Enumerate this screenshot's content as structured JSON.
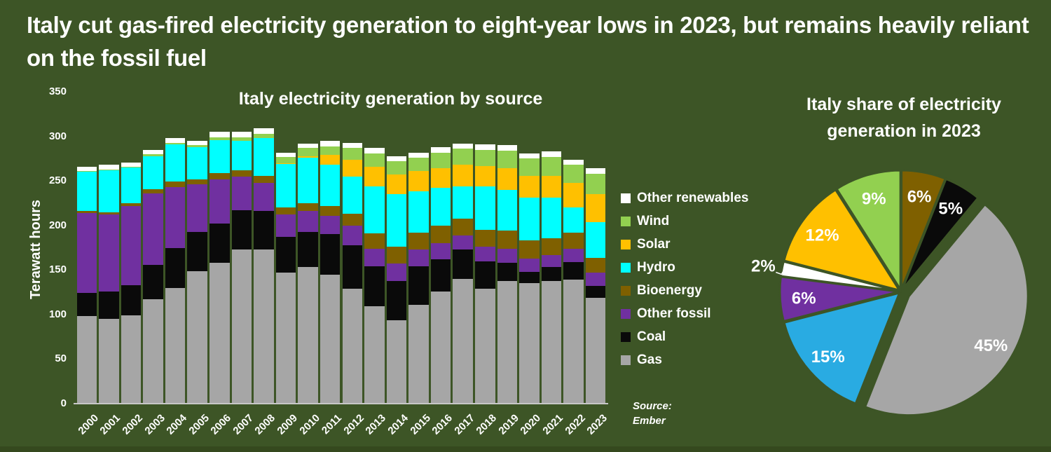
{
  "headline": "Italy cut gas-fired electricity generation to eight-year lows in 2023, but remains heavily reliant on the fossil fuel",
  "source": {
    "label": "Source:",
    "name": "Ember"
  },
  "colors": {
    "background": "#3D5526",
    "footer_strip": "#35491E",
    "text": "#FFFFFF",
    "axis_line": "#C7C7C7"
  },
  "chart_data": [
    {
      "type": "bar",
      "stacked": true,
      "title": "Italy electricity generation by source",
      "xlabel": "",
      "ylabel": "Terawatt hours",
      "ylim": [
        0,
        350
      ],
      "yticks": [
        0,
        50,
        100,
        150,
        200,
        250,
        300,
        350
      ],
      "grid": false,
      "legend_position": "right",
      "legend_order_top_to_bottom": [
        "Other renewables",
        "Wind",
        "Solar",
        "Hydro",
        "Bioenergy",
        "Other fossil",
        "Coal",
        "Gas"
      ],
      "categories": [
        "2000",
        "2001",
        "2002",
        "2003",
        "2004",
        "2005",
        "2006",
        "2007",
        "2008",
        "2009",
        "2010",
        "2011",
        "2012",
        "2013",
        "2014",
        "2015",
        "2016",
        "2017",
        "2018",
        "2019",
        "2020",
        "2021",
        "2022",
        "2023"
      ],
      "series": [
        {
          "name": "Gas",
          "color": "#A6A6A6",
          "values": [
            98,
            95,
            99,
            117,
            130,
            149,
            158,
            173,
            173,
            147,
            153,
            145,
            129,
            109,
            94,
            111,
            126,
            140,
            129,
            138,
            135,
            138,
            139,
            119
          ]
        },
        {
          "name": "Coal",
          "color": "#0A0A0A",
          "values": [
            26,
            31,
            34,
            39,
            45,
            44,
            44,
            44,
            43,
            40,
            40,
            45,
            49,
            45,
            44,
            43,
            36,
            33,
            31,
            20,
            13,
            15,
            20,
            13
          ]
        },
        {
          "name": "Other fossil",
          "color": "#7030A0",
          "values": [
            90,
            86,
            89,
            80,
            68,
            53,
            50,
            38,
            32,
            25,
            23,
            21,
            22,
            20,
            19,
            19,
            18,
            16,
            16,
            16,
            15,
            14,
            15,
            15
          ]
        },
        {
          "name": "Bioenergy",
          "color": "#7F6000",
          "values": [
            2,
            3,
            3,
            5,
            6,
            6,
            7,
            7,
            8,
            8,
            9,
            11,
            13,
            17,
            19,
            19,
            20,
            19,
            19,
            20,
            20,
            19,
            18,
            17
          ]
        },
        {
          "name": "Hydro",
          "color": "#00FFFF",
          "values": [
            44,
            47,
            40,
            37,
            42,
            36,
            37,
            33,
            42,
            49,
            51,
            46,
            42,
            53,
            59,
            46,
            42,
            36,
            49,
            46,
            48,
            45,
            28,
            40
          ]
        },
        {
          "name": "Solar",
          "color": "#FFC000",
          "values": [
            0,
            0,
            0,
            0,
            0,
            0,
            0,
            0,
            0,
            1,
            2,
            11,
            19,
            22,
            22,
            23,
            22,
            24,
            23,
            24,
            25,
            25,
            28,
            31
          ]
        },
        {
          "name": "Wind",
          "color": "#92D050",
          "values": [
            1,
            1,
            1,
            2,
            2,
            2,
            3,
            4,
            5,
            7,
            9,
            10,
            13,
            15,
            15,
            15,
            18,
            18,
            18,
            20,
            19,
            21,
            20,
            23
          ]
        },
        {
          "name": "Other renewables",
          "color": "#FFFFFF",
          "values": [
            5,
            5,
            5,
            5,
            5,
            5,
            6,
            6,
            6,
            5,
            5,
            6,
            6,
            6,
            6,
            6,
            6,
            6,
            6,
            6,
            6,
            6,
            6,
            6
          ]
        }
      ]
    },
    {
      "type": "pie",
      "title": "Italy share of electricity generation in 2023",
      "title_lines": [
        "Italy share of electricity",
        "generation in 2023"
      ],
      "start_angle_deg": 0,
      "direction": "clockwise",
      "slices": [
        {
          "label": "Bioenergy",
          "pct": 6,
          "color": "#7F6000"
        },
        {
          "label": "Coal",
          "pct": 5,
          "color": "#0A0A0A"
        },
        {
          "label": "Gas",
          "pct": 45,
          "color": "#A6A6A6",
          "exploded": true
        },
        {
          "label": "Hydro",
          "pct": 15,
          "color": "#29ABE2"
        },
        {
          "label": "Other fossil",
          "pct": 6,
          "color": "#7030A0"
        },
        {
          "label": "Other renewables",
          "pct": 2,
          "color": "#FFFFFF",
          "label_outside": true
        },
        {
          "label": "Solar",
          "pct": 12,
          "color": "#FFC000"
        },
        {
          "label": "Wind",
          "pct": 9,
          "color": "#92D050"
        }
      ]
    }
  ]
}
